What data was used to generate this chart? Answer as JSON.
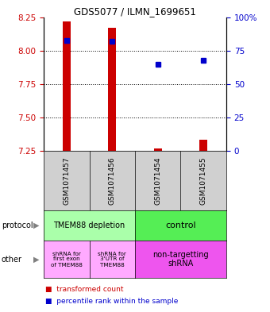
{
  "title": "GDS5077 / ILMN_1699651",
  "samples": [
    "GSM1071457",
    "GSM1071456",
    "GSM1071454",
    "GSM1071455"
  ],
  "red_values": [
    8.22,
    8.17,
    7.265,
    7.335
  ],
  "red_bottoms": [
    7.25,
    7.25,
    7.25,
    7.25
  ],
  "blue_values": [
    83,
    82,
    65,
    68
  ],
  "ylim_left": [
    7.25,
    8.25
  ],
  "ylim_right": [
    0,
    100
  ],
  "yticks_left": [
    7.25,
    7.5,
    7.75,
    8.0,
    8.25
  ],
  "yticks_right": [
    0,
    25,
    50,
    75,
    100
  ],
  "ytick_labels_right": [
    "0",
    "25",
    "50",
    "75",
    "100%"
  ],
  "hlines": [
    8.0,
    7.75,
    7.5
  ],
  "red_color": "#cc0000",
  "blue_color": "#0000cc",
  "protocol_colors": [
    "#aaffaa",
    "#55ee55"
  ],
  "other_colors_left": "#ffaaff",
  "other_color_right": "#ee55ee",
  "sample_bg": "#d0d0d0",
  "legend_red": "transformed count",
  "legend_blue": "percentile rank within the sample",
  "protocol_label": "protocol",
  "other_label": "other"
}
